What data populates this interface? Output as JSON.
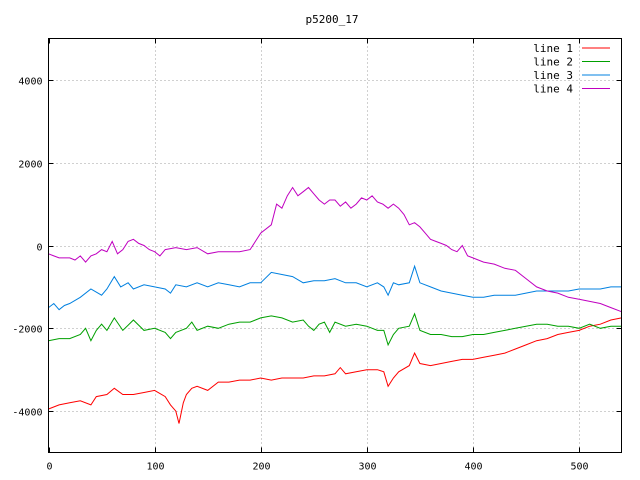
{
  "chart_data": {
    "type": "line",
    "title": "p5200_17",
    "xlabel": "",
    "ylabel": "",
    "xlim": [
      0,
      540
    ],
    "ylim": [
      -5000,
      5000
    ],
    "xticks": [
      0,
      100,
      200,
      300,
      400,
      500
    ],
    "yticks": [
      -4000,
      -2000,
      0,
      2000,
      4000
    ],
    "grid": true,
    "legend_position": "top-right",
    "series": [
      {
        "name": "line 1",
        "color": "#ff0000",
        "points": [
          [
            0,
            -3950
          ],
          [
            10,
            -3850
          ],
          [
            20,
            -3800
          ],
          [
            30,
            -3750
          ],
          [
            40,
            -3850
          ],
          [
            45,
            -3650
          ],
          [
            55,
            -3600
          ],
          [
            62,
            -3450
          ],
          [
            70,
            -3600
          ],
          [
            80,
            -3600
          ],
          [
            90,
            -3550
          ],
          [
            100,
            -3500
          ],
          [
            110,
            -3650
          ],
          [
            115,
            -3850
          ],
          [
            120,
            -4000
          ],
          [
            123,
            -4300
          ],
          [
            127,
            -3800
          ],
          [
            130,
            -3600
          ],
          [
            135,
            -3450
          ],
          [
            140,
            -3400
          ],
          [
            150,
            -3500
          ],
          [
            160,
            -3300
          ],
          [
            170,
            -3300
          ],
          [
            180,
            -3250
          ],
          [
            190,
            -3250
          ],
          [
            200,
            -3200
          ],
          [
            210,
            -3250
          ],
          [
            220,
            -3200
          ],
          [
            230,
            -3200
          ],
          [
            240,
            -3200
          ],
          [
            250,
            -3150
          ],
          [
            260,
            -3150
          ],
          [
            270,
            -3100
          ],
          [
            275,
            -2950
          ],
          [
            280,
            -3100
          ],
          [
            290,
            -3050
          ],
          [
            300,
            -3000
          ],
          [
            310,
            -3000
          ],
          [
            316,
            -3050
          ],
          [
            320,
            -3400
          ],
          [
            325,
            -3200
          ],
          [
            330,
            -3050
          ],
          [
            340,
            -2900
          ],
          [
            345,
            -2600
          ],
          [
            350,
            -2850
          ],
          [
            360,
            -2900
          ],
          [
            370,
            -2850
          ],
          [
            380,
            -2800
          ],
          [
            390,
            -2750
          ],
          [
            400,
            -2750
          ],
          [
            410,
            -2700
          ],
          [
            420,
            -2650
          ],
          [
            430,
            -2600
          ],
          [
            440,
            -2500
          ],
          [
            450,
            -2400
          ],
          [
            460,
            -2300
          ],
          [
            470,
            -2250
          ],
          [
            480,
            -2150
          ],
          [
            490,
            -2100
          ],
          [
            500,
            -2050
          ],
          [
            510,
            -1950
          ],
          [
            520,
            -1900
          ],
          [
            530,
            -1800
          ],
          [
            540,
            -1750
          ]
        ]
      },
      {
        "name": "line 2",
        "color": "#00a000",
        "points": [
          [
            0,
            -2300
          ],
          [
            10,
            -2250
          ],
          [
            20,
            -2250
          ],
          [
            30,
            -2150
          ],
          [
            35,
            -2000
          ],
          [
            40,
            -2300
          ],
          [
            45,
            -2050
          ],
          [
            50,
            -1900
          ],
          [
            55,
            -2050
          ],
          [
            62,
            -1750
          ],
          [
            70,
            -2050
          ],
          [
            80,
            -1800
          ],
          [
            90,
            -2050
          ],
          [
            100,
            -2000
          ],
          [
            110,
            -2100
          ],
          [
            115,
            -2250
          ],
          [
            120,
            -2100
          ],
          [
            130,
            -2000
          ],
          [
            135,
            -1850
          ],
          [
            140,
            -2050
          ],
          [
            150,
            -1950
          ],
          [
            160,
            -2000
          ],
          [
            170,
            -1900
          ],
          [
            180,
            -1850
          ],
          [
            190,
            -1850
          ],
          [
            200,
            -1750
          ],
          [
            210,
            -1700
          ],
          [
            220,
            -1750
          ],
          [
            230,
            -1850
          ],
          [
            240,
            -1800
          ],
          [
            245,
            -1950
          ],
          [
            250,
            -2050
          ],
          [
            255,
            -1900
          ],
          [
            260,
            -1850
          ],
          [
            265,
            -2100
          ],
          [
            270,
            -1850
          ],
          [
            280,
            -1950
          ],
          [
            290,
            -1900
          ],
          [
            300,
            -1950
          ],
          [
            310,
            -2050
          ],
          [
            316,
            -2050
          ],
          [
            320,
            -2400
          ],
          [
            325,
            -2150
          ],
          [
            330,
            -2000
          ],
          [
            340,
            -1950
          ],
          [
            345,
            -1650
          ],
          [
            350,
            -2050
          ],
          [
            360,
            -2150
          ],
          [
            370,
            -2150
          ],
          [
            380,
            -2200
          ],
          [
            390,
            -2200
          ],
          [
            400,
            -2150
          ],
          [
            410,
            -2150
          ],
          [
            420,
            -2100
          ],
          [
            430,
            -2050
          ],
          [
            440,
            -2000
          ],
          [
            450,
            -1950
          ],
          [
            460,
            -1900
          ],
          [
            470,
            -1900
          ],
          [
            480,
            -1950
          ],
          [
            490,
            -1950
          ],
          [
            500,
            -2000
          ],
          [
            510,
            -1900
          ],
          [
            520,
            -2000
          ],
          [
            530,
            -1950
          ],
          [
            540,
            -1950
          ]
        ]
      },
      {
        "name": "line 3",
        "color": "#0080e0",
        "points": [
          [
            0,
            -1500
          ],
          [
            5,
            -1400
          ],
          [
            10,
            -1550
          ],
          [
            15,
            -1450
          ],
          [
            20,
            -1400
          ],
          [
            30,
            -1250
          ],
          [
            40,
            -1050
          ],
          [
            50,
            -1200
          ],
          [
            55,
            -1050
          ],
          [
            62,
            -750
          ],
          [
            68,
            -1000
          ],
          [
            75,
            -900
          ],
          [
            80,
            -1050
          ],
          [
            90,
            -950
          ],
          [
            100,
            -1000
          ],
          [
            110,
            -1050
          ],
          [
            115,
            -1150
          ],
          [
            120,
            -950
          ],
          [
            130,
            -1000
          ],
          [
            140,
            -900
          ],
          [
            150,
            -1000
          ],
          [
            160,
            -900
          ],
          [
            170,
            -950
          ],
          [
            180,
            -1000
          ],
          [
            190,
            -900
          ],
          [
            200,
            -900
          ],
          [
            210,
            -650
          ],
          [
            220,
            -700
          ],
          [
            230,
            -750
          ],
          [
            240,
            -900
          ],
          [
            250,
            -850
          ],
          [
            260,
            -850
          ],
          [
            270,
            -800
          ],
          [
            280,
            -900
          ],
          [
            290,
            -900
          ],
          [
            300,
            -1000
          ],
          [
            310,
            -900
          ],
          [
            316,
            -1000
          ],
          [
            320,
            -1200
          ],
          [
            325,
            -900
          ],
          [
            330,
            -950
          ],
          [
            340,
            -900
          ],
          [
            345,
            -500
          ],
          [
            350,
            -900
          ],
          [
            360,
            -1000
          ],
          [
            370,
            -1100
          ],
          [
            380,
            -1150
          ],
          [
            390,
            -1200
          ],
          [
            400,
            -1250
          ],
          [
            410,
            -1250
          ],
          [
            420,
            -1200
          ],
          [
            430,
            -1200
          ],
          [
            440,
            -1200
          ],
          [
            450,
            -1150
          ],
          [
            460,
            -1100
          ],
          [
            470,
            -1100
          ],
          [
            480,
            -1100
          ],
          [
            490,
            -1100
          ],
          [
            500,
            -1050
          ],
          [
            510,
            -1050
          ],
          [
            520,
            -1050
          ],
          [
            530,
            -1000
          ],
          [
            540,
            -1000
          ]
        ]
      },
      {
        "name": "line 4",
        "color": "#c000c0",
        "points": [
          [
            0,
            -200
          ],
          [
            5,
            -250
          ],
          [
            10,
            -300
          ],
          [
            20,
            -300
          ],
          [
            25,
            -350
          ],
          [
            30,
            -250
          ],
          [
            35,
            -400
          ],
          [
            40,
            -250
          ],
          [
            45,
            -200
          ],
          [
            50,
            -100
          ],
          [
            55,
            -150
          ],
          [
            60,
            100
          ],
          [
            65,
            -200
          ],
          [
            70,
            -100
          ],
          [
            75,
            100
          ],
          [
            80,
            150
          ],
          [
            85,
            50
          ],
          [
            90,
            0
          ],
          [
            95,
            -100
          ],
          [
            100,
            -150
          ],
          [
            105,
            -250
          ],
          [
            110,
            -100
          ],
          [
            120,
            -50
          ],
          [
            130,
            -100
          ],
          [
            140,
            -50
          ],
          [
            150,
            -200
          ],
          [
            160,
            -150
          ],
          [
            170,
            -150
          ],
          [
            180,
            -150
          ],
          [
            190,
            -100
          ],
          [
            195,
            100
          ],
          [
            200,
            300
          ],
          [
            210,
            500
          ],
          [
            215,
            1000
          ],
          [
            220,
            900
          ],
          [
            225,
            1200
          ],
          [
            230,
            1400
          ],
          [
            235,
            1200
          ],
          [
            240,
            1300
          ],
          [
            245,
            1400
          ],
          [
            250,
            1250
          ],
          [
            255,
            1100
          ],
          [
            260,
            1000
          ],
          [
            265,
            1100
          ],
          [
            270,
            1100
          ],
          [
            275,
            950
          ],
          [
            280,
            1050
          ],
          [
            285,
            900
          ],
          [
            290,
            1000
          ],
          [
            295,
            1150
          ],
          [
            300,
            1100
          ],
          [
            305,
            1200
          ],
          [
            310,
            1050
          ],
          [
            315,
            1000
          ],
          [
            320,
            900
          ],
          [
            325,
            1000
          ],
          [
            330,
            900
          ],
          [
            335,
            750
          ],
          [
            340,
            500
          ],
          [
            345,
            550
          ],
          [
            350,
            450
          ],
          [
            355,
            300
          ],
          [
            360,
            150
          ],
          [
            365,
            100
          ],
          [
            370,
            50
          ],
          [
            375,
            0
          ],
          [
            380,
            -100
          ],
          [
            385,
            -150
          ],
          [
            390,
            0
          ],
          [
            395,
            -250
          ],
          [
            400,
            -300
          ],
          [
            410,
            -400
          ],
          [
            420,
            -450
          ],
          [
            430,
            -550
          ],
          [
            440,
            -600
          ],
          [
            450,
            -800
          ],
          [
            460,
            -1000
          ],
          [
            470,
            -1100
          ],
          [
            480,
            -1150
          ],
          [
            490,
            -1250
          ],
          [
            500,
            -1300
          ],
          [
            510,
            -1350
          ],
          [
            520,
            -1400
          ],
          [
            530,
            -1500
          ],
          [
            540,
            -1600
          ]
        ]
      }
    ]
  }
}
